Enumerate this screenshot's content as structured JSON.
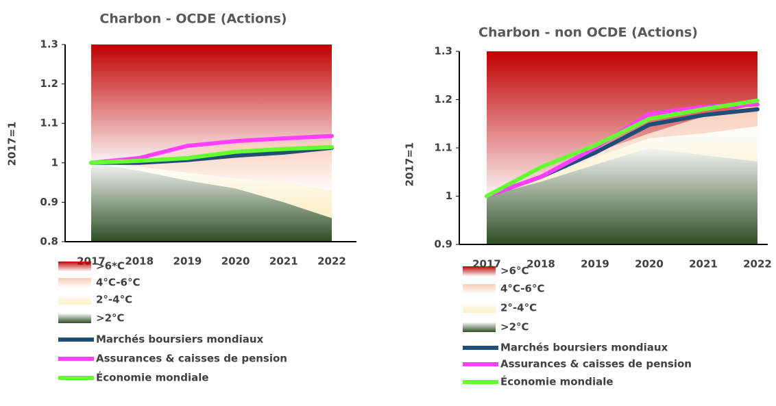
{
  "chart_data": [
    {
      "type": "area",
      "title": "Charbon - OCDE (Actions)",
      "y_label": "2017=1",
      "categories": [
        "2017",
        "2018",
        "2019",
        "2020",
        "2021",
        "2022"
      ],
      "ylim": [
        0.8,
        1.3
      ],
      "yticks": [
        0.8,
        0.9,
        1,
        1.1,
        1.2,
        1.3
      ],
      "series": [
        {
          "name": ">6*C",
          "type": "area",
          "color": "#c00000",
          "values": [
            1.3,
            1.3,
            1.3,
            1.3,
            1.3,
            1.3
          ]
        },
        {
          "name": "4°C-6°C",
          "type": "area",
          "color": "#f9cdb8",
          "values": [
            1.0,
            1.01,
            1.03,
            1.045,
            1.05,
            1.055
          ]
        },
        {
          "name": "2°-4°C",
          "type": "area",
          "color": "#fbefc4",
          "values": [
            1.0,
            0.99,
            0.975,
            0.96,
            0.95,
            0.93
          ]
        },
        {
          "name": ">2°C",
          "type": "area",
          "color": "#2d4f24",
          "values": [
            1.0,
            0.98,
            0.955,
            0.935,
            0.9,
            0.86
          ]
        },
        {
          "name": "Marchés boursiers mondiaux",
          "type": "line",
          "color": "#1f4e79",
          "values": [
            1.0,
            1.0,
            1.007,
            1.018,
            1.026,
            1.038
          ]
        },
        {
          "name": "Assurances & caisses de pension",
          "type": "line",
          "color": "#ff40ff",
          "values": [
            1.0,
            1.012,
            1.043,
            1.055,
            1.062,
            1.068
          ]
        },
        {
          "name": "Économie mondiale",
          "type": "line",
          "color": "#66ff33",
          "values": [
            1.0,
            1.005,
            1.012,
            1.028,
            1.035,
            1.04
          ]
        }
      ]
    },
    {
      "type": "area",
      "title": "Charbon - non OCDE (Actions)",
      "y_label": "2017=1",
      "categories": [
        "2017",
        "2018",
        "2019",
        "2020",
        "2021",
        "2022"
      ],
      "ylim": [
        0.9,
        1.3
      ],
      "yticks": [
        0.9,
        1,
        1.1,
        1.2,
        1.3
      ],
      "series": [
        {
          "name": ">6°C",
          "type": "area",
          "color": "#c00000",
          "values": [
            1.3,
            1.3,
            1.3,
            1.3,
            1.3,
            1.3
          ]
        },
        {
          "name": "4°C-6°C",
          "type": "area",
          "color": "#f9cdb8",
          "values": [
            1.0,
            1.04,
            1.09,
            1.13,
            1.165,
            1.19
          ]
        },
        {
          "name": "2°-4°C",
          "type": "area",
          "color": "#fbefc4",
          "values": [
            1.0,
            1.035,
            1.08,
            1.12,
            1.13,
            1.145
          ]
        },
        {
          "name": ">2°C",
          "type": "area",
          "color": "#2d4f24",
          "values": [
            1.0,
            1.03,
            1.065,
            1.1,
            1.085,
            1.072
          ]
        },
        {
          "name": "Marchés boursiers mondiaux",
          "type": "line",
          "color": "#1f4e79",
          "values": [
            1.0,
            1.04,
            1.09,
            1.148,
            1.168,
            1.18
          ]
        },
        {
          "name": "Assurances & caisses de pension",
          "type": "line",
          "color": "#ff40ff",
          "values": [
            1.0,
            1.04,
            1.1,
            1.17,
            1.185,
            1.19
          ]
        },
        {
          "name": "Économie mondiale",
          "type": "line",
          "color": "#66ff33",
          "values": [
            1.0,
            1.06,
            1.105,
            1.16,
            1.18,
            1.198
          ]
        }
      ]
    }
  ]
}
